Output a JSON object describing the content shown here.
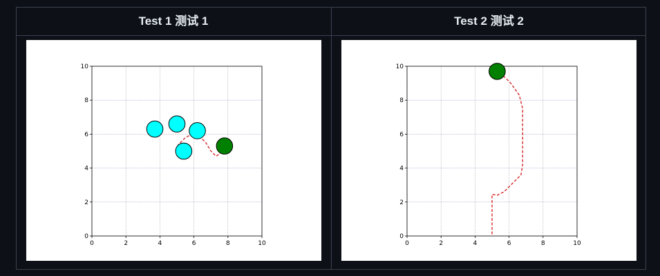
{
  "panels": [
    {
      "title": "Test 1  测试 1"
    },
    {
      "title": "Test 2  测试 2"
    }
  ],
  "chart_data": [
    {
      "type": "scatter",
      "title": "",
      "xlabel": "",
      "ylabel": "",
      "xlim": [
        0,
        10
      ],
      "ylim": [
        0,
        10
      ],
      "xticks": [
        0,
        2,
        4,
        6,
        8,
        10
      ],
      "yticks": [
        0,
        2,
        4,
        6,
        8,
        10
      ],
      "grid": true,
      "obstacles": {
        "color": "#00ffff",
        "radius": 0.48,
        "points": [
          [
            3.7,
            6.3
          ],
          [
            5.0,
            6.6
          ],
          [
            6.2,
            6.2
          ],
          [
            5.4,
            5.0
          ]
        ]
      },
      "goal": {
        "color": "#008000",
        "radius": 0.48,
        "x": 7.8,
        "y": 5.3
      },
      "path": {
        "color": "#d62728",
        "style": "dashed",
        "points": [
          [
            5.0,
            5.0
          ],
          [
            5.1,
            5.4
          ],
          [
            5.5,
            5.8
          ],
          [
            5.9,
            6.0
          ],
          [
            6.3,
            5.9
          ],
          [
            6.7,
            5.5
          ],
          [
            7.0,
            5.0
          ],
          [
            7.3,
            4.7
          ],
          [
            7.6,
            4.9
          ],
          [
            7.8,
            5.3
          ]
        ]
      }
    },
    {
      "type": "scatter",
      "title": "",
      "xlabel": "",
      "ylabel": "",
      "xlim": [
        0,
        10
      ],
      "ylim": [
        0,
        10
      ],
      "xticks": [
        0,
        2,
        4,
        6,
        8,
        10
      ],
      "yticks": [
        0,
        2,
        4,
        6,
        8,
        10
      ],
      "grid": true,
      "obstacles": {
        "color": "#00ffff",
        "radius": 0.48,
        "points": []
      },
      "goal": {
        "color": "#008000",
        "radius": 0.48,
        "x": 5.3,
        "y": 9.7
      },
      "path": {
        "color": "#d62728",
        "style": "dashed",
        "points": [
          [
            5.0,
            0.1
          ],
          [
            5.0,
            2.45
          ],
          [
            5.3,
            2.4
          ],
          [
            5.7,
            2.6
          ],
          [
            6.2,
            3.1
          ],
          [
            6.7,
            3.6
          ],
          [
            6.8,
            4.2
          ],
          [
            6.8,
            7.5
          ],
          [
            6.6,
            8.3
          ],
          [
            6.1,
            9.0
          ],
          [
            5.6,
            9.5
          ],
          [
            5.3,
            9.7
          ]
        ]
      }
    }
  ]
}
